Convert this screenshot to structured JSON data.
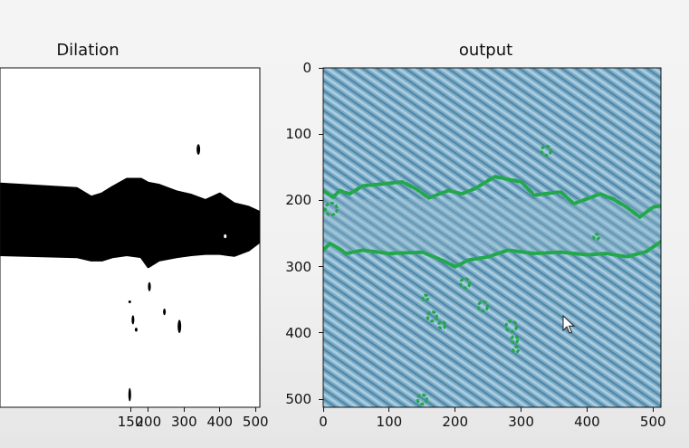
{
  "colors": {
    "figure_background": "#f2f2f2",
    "axis": "#111111",
    "mask_foreground": "#000000",
    "mask_background": "#ffffff",
    "fabric_base": "#7aaac6",
    "fabric_stripe_light": "#a9cde0",
    "fabric_stripe_dark": "#4f86a6",
    "contour": "#22a84a"
  },
  "chart_data": [
    {
      "type": "image",
      "title": "Dilation",
      "xlabel": "",
      "ylabel": "",
      "xlim": [
        -215,
        512
      ],
      "ylim": [
        512,
        0
      ],
      "xticks": [
        {
          "value": 200,
          "label": "200"
        },
        {
          "value": 300,
          "label": "300"
        },
        {
          "value": 400,
          "label": "400"
        },
        {
          "value": 500,
          "label": "500"
        }
      ],
      "xticks_partial": [
        {
          "value": 150,
          "label": "150"
        }
      ],
      "yticks": [],
      "grid": false,
      "image_content": "binary mask",
      "band": {
        "x": [
          -215,
          0,
          40,
          70,
          100,
          140,
          180,
          200,
          230,
          280,
          320,
          360,
          400,
          440,
          480,
          512
        ],
        "top": [
          175,
          182,
          195,
          190,
          180,
          168,
          168,
          174,
          177,
          187,
          192,
          200,
          190,
          205,
          210,
          218
        ],
        "bottom": [
          282,
          285,
          290,
          290,
          285,
          282,
          285,
          300,
          290,
          285,
          282,
          280,
          280,
          283,
          275,
          262
        ]
      },
      "blobs": [
        {
          "x": 340,
          "y": 123,
          "rx": 5,
          "ry": 8
        },
        {
          "x": 415,
          "y": 254,
          "rx": 3,
          "ry": 3,
          "fill": "white"
        },
        {
          "x": 203,
          "y": 330,
          "rx": 4,
          "ry": 7
        },
        {
          "x": 157,
          "y": 380,
          "rx": 3,
          "ry": 7
        },
        {
          "x": 166,
          "y": 395,
          "rx": 2,
          "ry": 3
        },
        {
          "x": 245,
          "y": 368,
          "rx": 3,
          "ry": 5
        },
        {
          "x": 287,
          "y": 390,
          "rx": 5,
          "ry": 10
        },
        {
          "x": 148,
          "y": 493,
          "rx": 3,
          "ry": 10
        },
        {
          "x": 148,
          "y": 353,
          "rx": 2,
          "ry": 2
        }
      ]
    },
    {
      "type": "image",
      "title": "output",
      "xlabel": "",
      "ylabel": "",
      "xlim": [
        0,
        512
      ],
      "ylim": [
        512,
        0
      ],
      "xticks": [
        {
          "value": 0,
          "label": "0"
        },
        {
          "value": 100,
          "label": "100"
        },
        {
          "value": 200,
          "label": "200"
        },
        {
          "value": 300,
          "label": "300"
        },
        {
          "value": 400,
          "label": "400"
        },
        {
          "value": 500,
          "label": "500"
        }
      ],
      "yticks": [
        {
          "value": 0,
          "label": "0"
        },
        {
          "value": 100,
          "label": "100"
        },
        {
          "value": 200,
          "label": "200"
        },
        {
          "value": 300,
          "label": "300"
        },
        {
          "value": 400,
          "label": "400"
        },
        {
          "value": 500,
          "label": "500"
        }
      ],
      "grid": false,
      "image_content": "fabric texture with detected defect contours",
      "contours": [
        {
          "x": [
            0,
            15,
            25,
            40,
            60,
            90,
            120,
            140,
            160,
            190,
            210,
            230,
            260,
            300,
            320,
            360,
            380,
            420,
            440,
            460,
            480,
            500,
            512
          ],
          "y": [
            185,
            195,
            185,
            190,
            178,
            175,
            172,
            182,
            196,
            185,
            190,
            182,
            164,
            172,
            192,
            187,
            205,
            190,
            198,
            210,
            225,
            210,
            208
          ]
        },
        {
          "x": [
            0,
            10,
            20,
            35,
            60,
            100,
            150,
            180,
            200,
            220,
            250,
            280,
            320,
            360,
            400,
            430,
            460,
            490,
            512
          ],
          "y": [
            275,
            265,
            270,
            280,
            275,
            280,
            278,
            290,
            300,
            290,
            285,
            275,
            280,
            278,
            282,
            280,
            285,
            277,
            262
          ]
        }
      ],
      "blobs": [
        {
          "x": 338,
          "y": 125,
          "r": 7
        },
        {
          "x": 12,
          "y": 213,
          "r": 9
        },
        {
          "x": 414,
          "y": 255,
          "r": 4
        },
        {
          "x": 215,
          "y": 325,
          "r": 7
        },
        {
          "x": 155,
          "y": 347,
          "r": 4
        },
        {
          "x": 165,
          "y": 375,
          "r": 7
        },
        {
          "x": 180,
          "y": 388,
          "r": 5
        },
        {
          "x": 242,
          "y": 360,
          "r": 7
        },
        {
          "x": 285,
          "y": 390,
          "r": 8
        },
        {
          "x": 290,
          "y": 410,
          "r": 5
        },
        {
          "x": 292,
          "y": 425,
          "r": 4
        },
        {
          "x": 150,
          "y": 500,
          "r": 7
        }
      ]
    }
  ],
  "cursor": {
    "icon": "mouse-pointer-icon"
  }
}
